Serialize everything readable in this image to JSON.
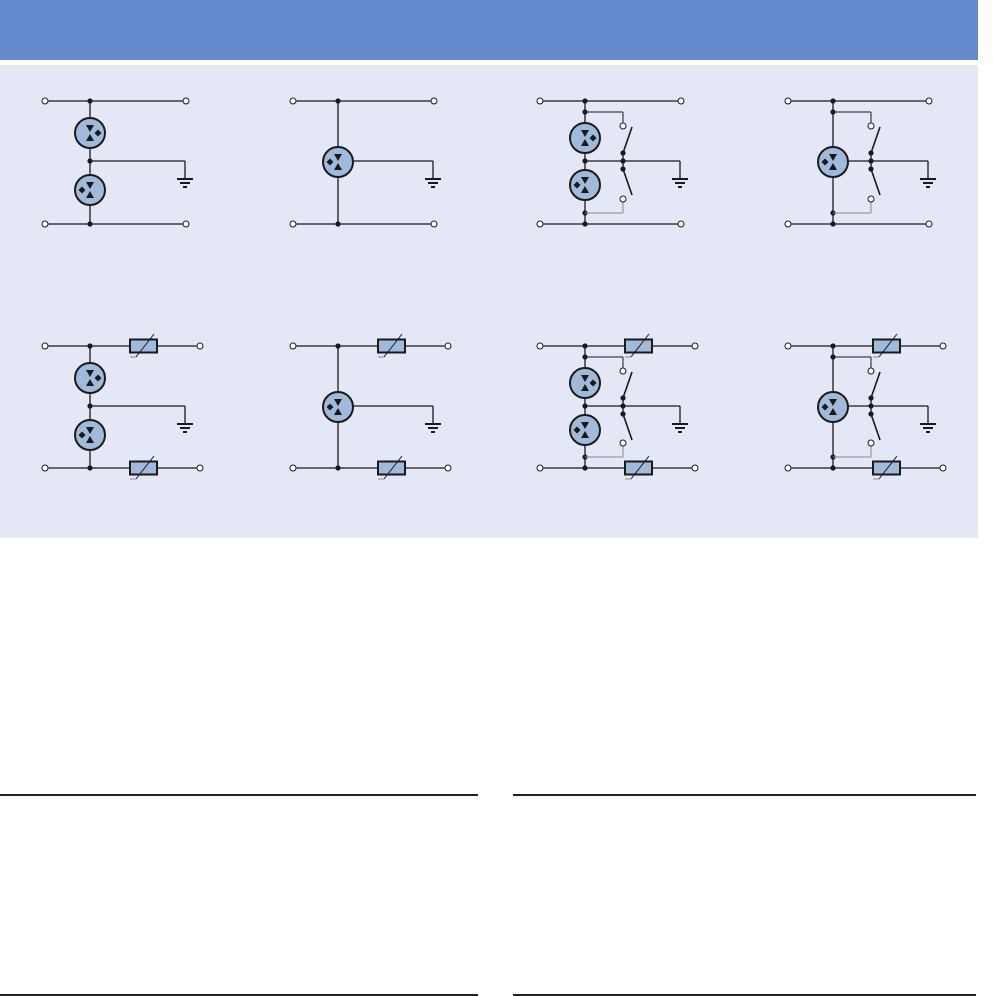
{
  "colors": {
    "header": "#6489cd",
    "panel": "#e4e8f6",
    "tube_fill": "#9fbadb",
    "wire": "#1a1a1a",
    "aux_wire": "#8a8a8a"
  },
  "circuits": [
    {
      "tubes": 2,
      "fail_safe_switches": false,
      "series_varistors": false
    },
    {
      "tubes": 1,
      "fail_safe_switches": false,
      "series_varistors": false
    },
    {
      "tubes": 2,
      "fail_safe_switches": true,
      "series_varistors": false
    },
    {
      "tubes": 1,
      "fail_safe_switches": true,
      "series_varistors": false
    },
    {
      "tubes": 2,
      "fail_safe_switches": false,
      "series_varistors": true
    },
    {
      "tubes": 1,
      "fail_safe_switches": false,
      "series_varistors": true
    },
    {
      "tubes": 2,
      "fail_safe_switches": true,
      "series_varistors": true
    },
    {
      "tubes": 1,
      "fail_safe_switches": true,
      "series_varistors": true
    }
  ]
}
